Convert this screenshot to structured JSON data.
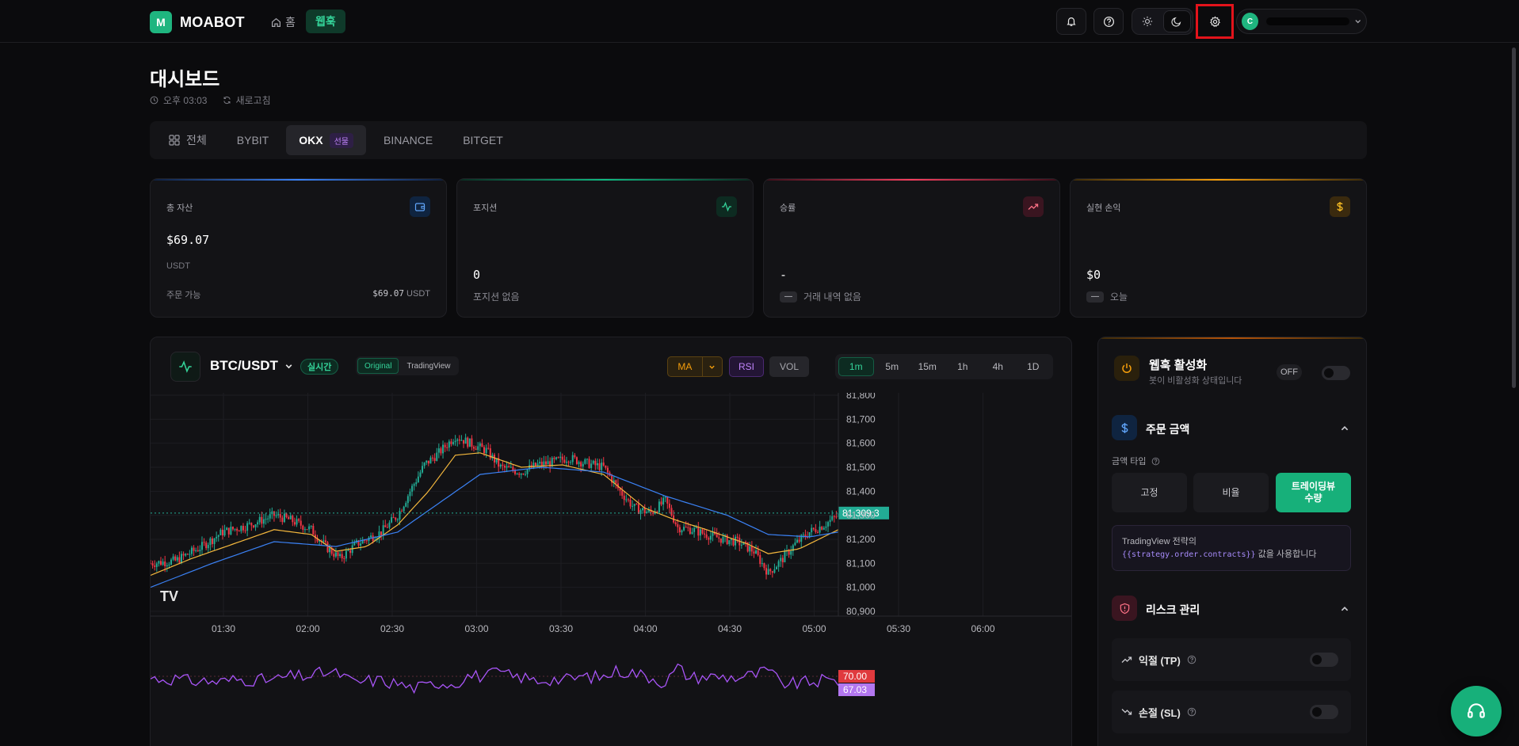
{
  "app": {
    "logo_letter": "M",
    "logo_text": "MOABOT"
  },
  "nav": {
    "home": "홈",
    "webhook": "웹훅"
  },
  "user": {
    "avatar_initial": "C"
  },
  "header": {
    "title": "대시보드",
    "time": "오후 03:03",
    "refresh": "새로고침"
  },
  "exchange_tabs": [
    {
      "label": "전체"
    },
    {
      "label": "BYBIT"
    },
    {
      "label": "OKX",
      "badge": "선물"
    },
    {
      "label": "BINANCE"
    },
    {
      "label": "BITGET"
    }
  ],
  "cards": {
    "total_assets": {
      "label": "총 자산",
      "value": "$69.07",
      "unit": "USDT",
      "foot_label": "주문 가능",
      "foot_value": "$69.07",
      "foot_unit": "USDT",
      "accent": "#3b82f6"
    },
    "positions": {
      "label": "포지션",
      "value": "0",
      "foot": "포지션 없음",
      "accent": "#10b981"
    },
    "win_rate": {
      "label": "승률",
      "value": "-",
      "pill": "—",
      "foot": "거래 내역 없음",
      "accent": "#f43f5e"
    },
    "realized_pnl": {
      "label": "실현 손익",
      "value": "$0",
      "pill": "—",
      "foot": "오늘",
      "accent": "#f59e0b"
    }
  },
  "chart": {
    "pair": "BTC/USDT",
    "live": "실시간",
    "modes": [
      "Original",
      "TradingView"
    ],
    "indicators": {
      "ma": "MA",
      "rsi": "RSI",
      "vol": "VOL"
    },
    "timeframes": [
      "1m",
      "5m",
      "15m",
      "1h",
      "4h",
      "1D"
    ],
    "logo": "TV"
  },
  "chart_data": {
    "type": "candlestick",
    "series": [
      {
        "name": "BTC/USDT"
      },
      {
        "name": "MA"
      },
      {
        "name": "RSI"
      }
    ],
    "x_ticks": [
      "01:30",
      "02:00",
      "02:30",
      "03:00",
      "03:30",
      "04:00",
      "04:30",
      "05:00",
      "05:30",
      "06:00"
    ],
    "y_ticks": [
      "81,800",
      "81,700",
      "81,600",
      "81,500",
      "81,400",
      "81,300",
      "81,200",
      "81,100",
      "81,000",
      "80,900"
    ],
    "ylim": [
      80880,
      81810
    ],
    "last_price": "81,309.3",
    "last_value": 81309.3,
    "close_path": [
      [
        0,
        81100
      ],
      [
        12,
        81110
      ],
      [
        25,
        81170
      ],
      [
        35,
        81230
      ],
      [
        48,
        81260
      ],
      [
        60,
        81300
      ],
      [
        68,
        81280
      ],
      [
        78,
        81240
      ],
      [
        85,
        81170
      ],
      [
        92,
        81120
      ],
      [
        100,
        81180
      ],
      [
        112,
        81230
      ],
      [
        120,
        81300
      ],
      [
        126,
        81400
      ],
      [
        133,
        81510
      ],
      [
        140,
        81560
      ],
      [
        148,
        81630
      ],
      [
        155,
        81600
      ],
      [
        163,
        81570
      ],
      [
        170,
        81500
      ],
      [
        180,
        81480
      ],
      [
        188,
        81510
      ],
      [
        195,
        81520
      ],
      [
        203,
        81540
      ],
      [
        210,
        81520
      ],
      [
        220,
        81500
      ],
      [
        228,
        81400
      ],
      [
        235,
        81330
      ],
      [
        243,
        81310
      ],
      [
        250,
        81360
      ],
      [
        256,
        81250
      ],
      [
        263,
        81240
      ],
      [
        270,
        81220
      ],
      [
        278,
        81200
      ],
      [
        285,
        81190
      ],
      [
        293,
        81150
      ],
      [
        300,
        81060
      ],
      [
        306,
        81110
      ],
      [
        313,
        81180
      ],
      [
        320,
        81230
      ],
      [
        327,
        81260
      ],
      [
        334,
        81300
      ]
    ],
    "ma_fast": [
      [
        0,
        81050
      ],
      [
        20,
        81120
      ],
      [
        40,
        81180
      ],
      [
        60,
        81240
      ],
      [
        78,
        81220
      ],
      [
        90,
        81150
      ],
      [
        105,
        81170
      ],
      [
        120,
        81260
      ],
      [
        135,
        81400
      ],
      [
        148,
        81550
      ],
      [
        160,
        81560
      ],
      [
        180,
        81500
      ],
      [
        200,
        81510
      ],
      [
        220,
        81470
      ],
      [
        240,
        81330
      ],
      [
        255,
        81280
      ],
      [
        270,
        81240
      ],
      [
        290,
        81180
      ],
      [
        300,
        81140
      ],
      [
        315,
        81160
      ],
      [
        334,
        81240
      ]
    ],
    "ma_slow": [
      [
        0,
        81000
      ],
      [
        30,
        81100
      ],
      [
        60,
        81190
      ],
      [
        90,
        81170
      ],
      [
        120,
        81230
      ],
      [
        140,
        81350
      ],
      [
        160,
        81470
      ],
      [
        190,
        81500
      ],
      [
        220,
        81480
      ],
      [
        250,
        81380
      ],
      [
        280,
        81300
      ],
      [
        300,
        81220
      ],
      [
        320,
        81210
      ],
      [
        334,
        81230
      ]
    ],
    "rsi_levels": [
      "70.00",
      "67.03"
    ]
  },
  "webhook_panel": {
    "title": "웹훅 활성화",
    "subtitle": "봇이 비활성화 상태입니다",
    "toggle_label": "OFF",
    "order_amount": {
      "title": "주문 금액",
      "amount_type_label": "금액 타입",
      "options": [
        "고정",
        "비율",
        "트레이딩뷰 수량"
      ],
      "selected": "트레이딩뷰 수량",
      "tv_note_prefix": "TradingView 전략의",
      "tv_note_code": "{{strategy.order.contracts}}",
      "tv_note_suffix": "값을 사용합니다"
    },
    "risk": {
      "title": "리스크 관리",
      "take_profit": "익절 (TP)",
      "stop_loss": "손절 (SL)"
    }
  },
  "colors": {
    "accent_green": "#17b07a",
    "up": "#22ab94",
    "down": "#f23645",
    "ma_fast": "#f5b83d",
    "ma_slow": "#3b82f6",
    "rsi": "#a855f7"
  }
}
